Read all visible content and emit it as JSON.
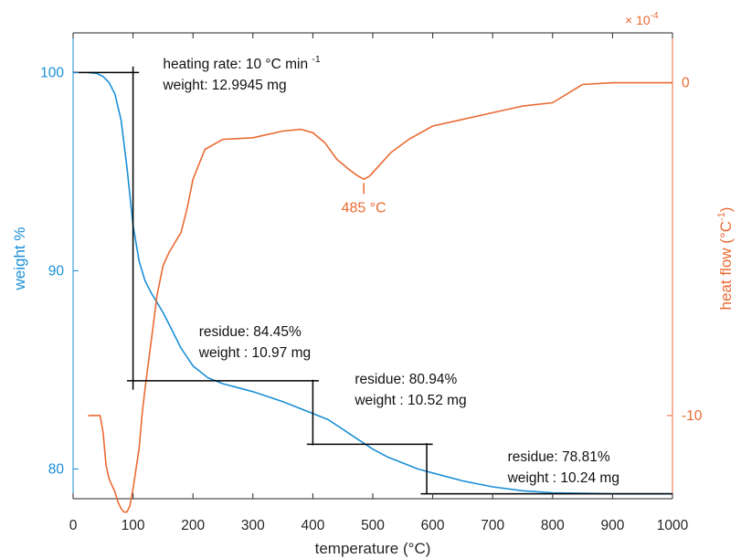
{
  "chart_data": {
    "type": "line",
    "title": "",
    "xlabel": "temperature (°C)",
    "ylabel": "weight %",
    "y2label": "heat flow (°C",
    "y2label_sup": "-1",
    "y2label_tail": ")",
    "xlim": [
      0,
      1000
    ],
    "ylim": [
      78.5,
      102
    ],
    "y2lim": [
      -12.5,
      1.5
    ],
    "y2_multiplier": "× 10",
    "y2_multiplier_exp": "-4",
    "x_ticks": [
      "0",
      "100",
      "200",
      "300",
      "400",
      "500",
      "600",
      "700",
      "800",
      "900",
      "1000"
    ],
    "y_ticks": [
      "80",
      "90",
      "100"
    ],
    "y2_ticks": [
      "-10",
      "0"
    ],
    "grid": false,
    "colors": {
      "weight": "#1a8fd6",
      "heat_flow": "#ea6a33",
      "annotation": "#000000"
    },
    "series": [
      {
        "axis": "left",
        "x": [
          25,
          40,
          50,
          60,
          70,
          80,
          90,
          100,
          110,
          120,
          130,
          140,
          150,
          160,
          180,
          200,
          225,
          250,
          300,
          350,
          400,
          425,
          450,
          475,
          500,
          525,
          550,
          575,
          600,
          650,
          700,
          750,
          800,
          900,
          1000
        ],
        "values": [
          100,
          99.95,
          99.8,
          99.5,
          98.9,
          97.6,
          95.2,
          92.3,
          90.5,
          89.5,
          88.9,
          88.4,
          87.9,
          87.3,
          86.1,
          85.2,
          84.6,
          84.3,
          83.9,
          83.4,
          82.8,
          82.5,
          82.0,
          81.5,
          81.0,
          80.6,
          80.3,
          80.0,
          79.8,
          79.4,
          79.1,
          78.9,
          78.8,
          78.75,
          78.75
        ]
      },
      {
        "axis": "right",
        "x": [
          25,
          45,
          50,
          55,
          60,
          65,
          70,
          75,
          80,
          85,
          90,
          95,
          100,
          105,
          110,
          115,
          120,
          130,
          140,
          150,
          160,
          170,
          180,
          190,
          200,
          220,
          250,
          300,
          350,
          380,
          400,
          420,
          440,
          460,
          475,
          485,
          495,
          510,
          530,
          560,
          600,
          650,
          700,
          750,
          800,
          850,
          900,
          1000
        ],
        "values": [
          -10,
          -10,
          -10.5,
          -11.5,
          -11.9,
          -12.1,
          -12.3,
          -12.6,
          -12.8,
          -12.9,
          -12.9,
          -12.7,
          -12.2,
          -11.6,
          -11.0,
          -10.0,
          -9.2,
          -7.8,
          -6.4,
          -5.5,
          -5.1,
          -4.8,
          -4.5,
          -3.8,
          -2.9,
          -2.0,
          -1.7,
          -1.65,
          -1.45,
          -1.4,
          -1.5,
          -1.8,
          -2.3,
          -2.6,
          -2.8,
          -2.9,
          -2.8,
          -2.5,
          -2.1,
          -1.7,
          -1.3,
          -1.1,
          -0.9,
          -0.7,
          -0.6,
          -0.05,
          0.0,
          0.0
        ]
      }
    ],
    "vlines": [
      {
        "x": 100,
        "y0": 84,
        "y1": 100.3
      },
      {
        "x": 400,
        "y0": 81.2,
        "y1": 84.5
      },
      {
        "x": 590,
        "y0": 78.75,
        "y1": 81.3
      }
    ],
    "hlines": [
      {
        "y": 100,
        "x0": 0,
        "x1": 110
      },
      {
        "y": 84.45,
        "x0": 90,
        "x1": 410
      },
      {
        "y": 81.25,
        "x0": 390,
        "x1": 600
      },
      {
        "y": 78.75,
        "x0": 580,
        "x1": 1000
      }
    ],
    "annotations": [
      {
        "x": 150,
        "y": 100.2,
        "l1": "heating rate: 10 °C min ",
        "l1_sup": "-1",
        "l2": "weight: 12.9945 mg"
      },
      {
        "x": 210,
        "y": 86.7,
        "l1": "residue: 84.45%",
        "l2": "weight : 10.97 mg"
      },
      {
        "x": 470,
        "y": 84.3,
        "l1": "residue: 80.94%",
        "l2": "weight : 10.52 mg"
      },
      {
        "x": 725,
        "y": 80.4,
        "l1": "residue: 78.81%",
        "l2": "weight : 10.24 mg"
      }
    ],
    "peak_label": {
      "text": "485 °C",
      "x": 485,
      "y2": -2.9
    }
  }
}
